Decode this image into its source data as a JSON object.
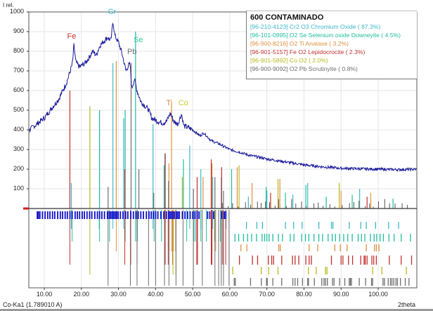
{
  "chart_data": {
    "type": "line",
    "title": "600 CONTAMINADO",
    "ylabel": "I rel.",
    "xlabel": "2theta",
    "radiation": "Co-Ka1 (1.789010 A)",
    "xlim": [
      5.8,
      110.5
    ],
    "ylim": [
      0,
      1000
    ],
    "yticks": [
      "100",
      "200",
      "300",
      "400",
      "500",
      "600",
      "700",
      "800",
      "900",
      "1000"
    ],
    "xticks": [
      "10.00",
      "20.00",
      "30.00",
      "40.00",
      "50.00",
      "60.00",
      "70.00",
      "80.00",
      "90.00",
      "100.00"
    ],
    "grid": true,
    "pattern_color": "#1a1a9a",
    "pattern": [
      [
        6,
        400
      ],
      [
        8,
        430
      ],
      [
        10,
        460
      ],
      [
        12,
        510
      ],
      [
        14,
        560
      ],
      [
        15,
        600
      ],
      [
        16,
        640
      ],
      [
        17,
        700
      ],
      [
        17.6,
        740
      ],
      [
        18,
        830
      ],
      [
        18.5,
        745
      ],
      [
        19.5,
        720
      ],
      [
        21,
        740
      ],
      [
        22,
        765
      ],
      [
        23,
        800
      ],
      [
        24,
        780
      ],
      [
        25,
        830
      ],
      [
        26,
        850
      ],
      [
        27,
        870
      ],
      [
        28,
        855
      ],
      [
        28.5,
        955
      ],
      [
        29,
        880
      ],
      [
        30,
        845
      ],
      [
        31,
        785
      ],
      [
        32,
        700
      ],
      [
        32.6,
        725
      ],
      [
        33.1,
        735
      ],
      [
        33.6,
        610
      ],
      [
        34.3,
        660
      ],
      [
        35,
        600
      ],
      [
        36,
        545
      ],
      [
        37,
        525
      ],
      [
        38,
        505
      ],
      [
        39,
        460
      ],
      [
        40,
        450
      ],
      [
        41,
        440
      ],
      [
        42,
        435
      ],
      [
        43,
        445
      ],
      [
        44,
        485
      ],
      [
        45,
        440
      ],
      [
        46,
        430
      ],
      [
        47,
        482
      ],
      [
        47.6,
        420
      ],
      [
        49,
        410
      ],
      [
        50,
        400
      ],
      [
        52,
        370
      ],
      [
        53,
        385
      ],
      [
        55,
        345
      ],
      [
        57,
        330
      ],
      [
        60,
        300
      ],
      [
        63,
        285
      ],
      [
        65,
        272
      ],
      [
        70,
        252
      ],
      [
        75,
        237
      ],
      [
        80,
        222
      ],
      [
        85,
        212
      ],
      [
        90,
        205
      ],
      [
        95,
        202
      ],
      [
        100,
        200
      ],
      [
        105,
        198
      ],
      [
        110.5,
        200
      ]
    ],
    "peak_labels": [
      {
        "text": "Fe",
        "x": 17.3,
        "y": 840,
        "color": "#c83030"
      },
      {
        "text": "Cr",
        "x": 28.3,
        "y": 965,
        "color": "#3cc0d0"
      },
      {
        "text": "Se",
        "x": 35.2,
        "y": 820,
        "color": "#30c8a0"
      },
      {
        "text": "Pb",
        "x": 33.5,
        "y": 760,
        "color": "#707070"
      },
      {
        "text": "Ti",
        "x": 44.0,
        "y": 500,
        "color": "#e08030"
      },
      {
        "text": "Co",
        "x": 47.3,
        "y": 500,
        "color": "#c8c830"
      }
    ],
    "series": [
      {
        "name": "[96-210-4123] Cr2 O3 Chromium Oxide ( 87.3%)",
        "color": "#3cb8cc",
        "sticks": [
          [
            17.3,
            130
          ],
          [
            28.5,
            740
          ],
          [
            31.4,
            460
          ],
          [
            39.3,
            430
          ],
          [
            42.5,
            280
          ],
          [
            49.2,
            320
          ],
          [
            52.2,
            200
          ],
          [
            55.4,
            160
          ],
          [
            57.7,
            160
          ],
          [
            65,
            60
          ],
          [
            70,
            90
          ],
          [
            77,
            70
          ],
          [
            81,
            130
          ],
          [
            95,
            100
          ]
        ],
        "ticks": [
          17.3,
          24.8,
          28.5,
          31.4,
          33.2,
          35.0,
          39.3,
          42.5,
          49.2,
          52.2,
          55.4,
          57.7,
          59.0,
          64.5,
          67.3,
          68.8,
          75.0,
          77.2,
          79.5,
          84.0,
          87.4,
          87.8,
          92.2,
          95.3,
          96.8,
          99.3,
          102.8,
          105.5
        ]
      },
      {
        "name": "[96-101-0995] O2 Se Selenium oxide Downeyite ( 4.5%)",
        "color": "#20bca0",
        "sticks": [
          [
            24.9,
            500
          ],
          [
            31.8,
            500
          ],
          [
            34.6,
            900
          ],
          [
            42.3,
            220
          ],
          [
            47.5,
            250
          ],
          [
            60.5,
            200
          ],
          [
            69.8,
            110
          ],
          [
            75,
            80
          ],
          [
            80.5,
            120
          ],
          [
            86,
            60
          ],
          [
            93,
            70
          ],
          [
            104,
            50
          ]
        ],
        "ticks": [
          17.5,
          24.9,
          27.6,
          31.8,
          34.6,
          35.1,
          39.6,
          41.6,
          48.4,
          50.3,
          50.7,
          52.2,
          53.7,
          55.9,
          57.0,
          57.5,
          61.4,
          62.4,
          63.7,
          64.8,
          65.9,
          67.2,
          68.7,
          69.4,
          70.0,
          70.6,
          71.6,
          73.1,
          74.2,
          76.3,
          77.3,
          79.4,
          80.4,
          81.3,
          82.7,
          84.0,
          85.0,
          86.5,
          87.6,
          88.5,
          89.6,
          90.7,
          91.8,
          93.0,
          94.6,
          95.5,
          96.4,
          97.9,
          98.9,
          99.6,
          100.5,
          101.4,
          102.9,
          104.3,
          106.2,
          108.7
        ],
        "row": 1
      },
      {
        "name": "[96-900-8216] O2 Ti Anatase ( 3.2%)",
        "color": "#e09040",
        "sticks": [
          [
            29.4,
            750
          ],
          [
            43.6,
            230
          ],
          [
            44.3,
            530
          ],
          [
            52.8,
            160
          ],
          [
            55.2,
            230
          ],
          [
            62,
            210
          ],
          [
            66,
            130
          ],
          [
            73.5,
            150
          ],
          [
            90,
            90
          ],
          [
            98,
            80
          ]
        ],
        "ticks": [
          29.4,
          43.6,
          44.3,
          44.8,
          45.4,
          55.2,
          56.2,
          63.0,
          64.6,
          73.2,
          73.6,
          81.4,
          83.7,
          88.3,
          89.8,
          91.6,
          96.8,
          99.0,
          99.5,
          100.2
        ]
      },
      {
        "name": "[96-901-5157] Fe O2  Lepidocrocite ( 2.3%)",
        "color": "#c03030",
        "sticks": [
          [
            16.9,
            600
          ],
          [
            31.7,
            200
          ],
          [
            42.6,
            280
          ],
          [
            51.2,
            160
          ],
          [
            55.0,
            250
          ],
          [
            57.8,
            210
          ],
          [
            71,
            80
          ],
          [
            97,
            60
          ]
        ],
        "ticks": [
          16.9,
          31.7,
          33.3,
          35.0,
          42.6,
          43.4,
          44.6,
          51.1,
          51.3,
          55.0,
          55.2,
          57.7,
          58.1,
          58.9,
          62.6,
          66.1,
          67.5,
          70.4,
          71.3,
          71.8,
          74.0,
          76.9,
          77.6,
          78.6,
          80.5,
          81.4,
          82.0,
          87.4,
          90.0,
          90.5,
          92.0,
          93.1,
          95.3,
          96.2,
          96.5,
          97.0,
          98.3,
          98.8,
          99.5,
          103.0,
          106.2,
          109.0
        ]
      },
      {
        "name": "[96-901-5892] Co O2  ( 2.0%)",
        "color": "#b8b820",
        "sticks": [
          [
            22.3,
            520
          ],
          [
            47.2,
            160
          ],
          [
            62.5,
            220
          ],
          [
            73,
            150
          ],
          [
            89.5,
            130
          ]
        ],
        "ticks": [
          22.3,
          44.7,
          45.5,
          60.8,
          68.5,
          70.5,
          73.0,
          81.2,
          83.3,
          85.8,
          86.2,
          98.5,
          101.0,
          107.6
        ]
      },
      {
        "name": "[96-900-9092] O2 Pb  Scrutinyite ( 0.8%)",
        "color": "#6e6e6e",
        "sticks": [
          [
            27.2,
            110
          ],
          [
            33.4,
            740
          ],
          [
            35.5,
            200
          ],
          [
            39.5,
            80
          ],
          [
            43.5,
            140
          ],
          [
            50.2,
            100
          ],
          [
            56,
            160
          ],
          [
            58.3,
            90
          ]
        ],
        "ticks": [
          27.2,
          33.2,
          35.0,
          38.1,
          40.0,
          42.4,
          43.6,
          45.5,
          47.4,
          50.2,
          52.6,
          56.0,
          57.0,
          57.7,
          58.3,
          59.8,
          61.2,
          61.5,
          65.6,
          68.5,
          69.9,
          70.1,
          71.6,
          74.0,
          77.0,
          77.6,
          78.3,
          79.6,
          81.0,
          81.2,
          82.8,
          84.8,
          85.4,
          85.8,
          86.3,
          87.7,
          88.1,
          89.6,
          91.0,
          92.2,
          92.5,
          92.8,
          94.9,
          96.6,
          98.2,
          98.5,
          101.3,
          101.7,
          102.7,
          103.3,
          103.7,
          104.2,
          104.8,
          105.2,
          106.0,
          107.3,
          108.3
        ]
      }
    ],
    "peak_markers": [
      8.1,
      8.4,
      8.8,
      9.5,
      10.2,
      10.9,
      11.5,
      12.2,
      12.8,
      13.6,
      14.3,
      14.9,
      15.6,
      16.2,
      16.9,
      17.5,
      18.3,
      18.9,
      19.5,
      20.2,
      20.8,
      21.5,
      22.2,
      22.8,
      23.6,
      24.3,
      24.9,
      25.5,
      26.2,
      27.0,
      27.5,
      27.9,
      28.3,
      28.7,
      29.1,
      29.5,
      29.9,
      30.5,
      31.2,
      31.9,
      32.5,
      33.3,
      34.0,
      34.7,
      35.3,
      36.0,
      36.7,
      37.5,
      38.2,
      38.8,
      39.4,
      40.0,
      40.6,
      41.4,
      42.2,
      42.9,
      43.5,
      43.9,
      44.3,
      44.7,
      45.1,
      45.6,
      46.0,
      46.4,
      47.2,
      47.9,
      48.6,
      49.3,
      50.0,
      50.6,
      51.2,
      51.7,
      54.0,
      54.6,
      55.6,
      57.8,
      58.5,
      58.9
    ]
  }
}
